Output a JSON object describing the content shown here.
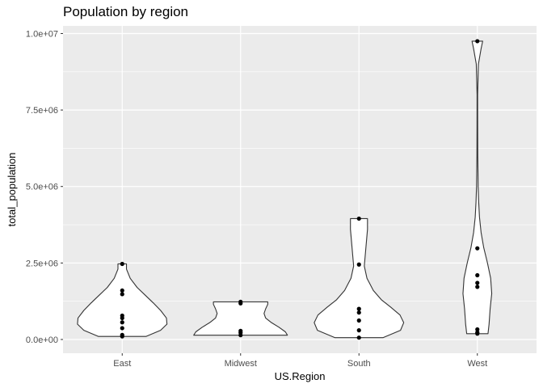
{
  "chart_data": {
    "type": "violin",
    "title": "Population by region",
    "xlabel": "US.Region",
    "ylabel": "total_population",
    "categories": [
      "East",
      "Midwest",
      "South",
      "West"
    ],
    "yticks": [
      {
        "value": 0,
        "label": "0.0e+00"
      },
      {
        "value": 2500000,
        "label": "2.5e+06"
      },
      {
        "value": 5000000,
        "label": "5.0e+06"
      },
      {
        "value": 7500000,
        "label": "7.5e+06"
      },
      {
        "value": 10000000,
        "label": "1.0e+07"
      }
    ],
    "ylim": [
      -450000,
      10250000
    ],
    "grid": true,
    "series": [
      {
        "category": "East",
        "points": [
          2470000,
          1600000,
          1480000,
          780000,
          700000,
          560000,
          370000,
          150000,
          100000
        ],
        "density": [
          {
            "y": 100000,
            "w": 0.45
          },
          {
            "y": 300000,
            "w": 0.72
          },
          {
            "y": 500000,
            "w": 0.84
          },
          {
            "y": 700000,
            "w": 0.83
          },
          {
            "y": 950000,
            "w": 0.72
          },
          {
            "y": 1200000,
            "w": 0.58
          },
          {
            "y": 1450000,
            "w": 0.43
          },
          {
            "y": 1700000,
            "w": 0.28
          },
          {
            "y": 2000000,
            "w": 0.15
          },
          {
            "y": 2300000,
            "w": 0.08
          },
          {
            "y": 2470000,
            "w": 0.08
          }
        ]
      },
      {
        "category": "Midwest",
        "points": [
          1230000,
          1180000,
          280000,
          220000,
          140000
        ],
        "density": [
          {
            "y": 140000,
            "w": 0.88
          },
          {
            "y": 250000,
            "w": 0.84
          },
          {
            "y": 400000,
            "w": 0.72
          },
          {
            "y": 550000,
            "w": 0.58
          },
          {
            "y": 700000,
            "w": 0.47
          },
          {
            "y": 850000,
            "w": 0.44
          },
          {
            "y": 1000000,
            "w": 0.47
          },
          {
            "y": 1150000,
            "w": 0.51
          },
          {
            "y": 1230000,
            "w": 0.51
          }
        ]
      },
      {
        "category": "South",
        "points": [
          3950000,
          2450000,
          1000000,
          880000,
          620000,
          300000,
          60000
        ],
        "density": [
          {
            "y": 60000,
            "w": 0.45
          },
          {
            "y": 300000,
            "w": 0.78
          },
          {
            "y": 550000,
            "w": 0.84
          },
          {
            "y": 800000,
            "w": 0.77
          },
          {
            "y": 1050000,
            "w": 0.6
          },
          {
            "y": 1300000,
            "w": 0.42
          },
          {
            "y": 1600000,
            "w": 0.27
          },
          {
            "y": 2000000,
            "w": 0.15
          },
          {
            "y": 2400000,
            "w": 0.1
          },
          {
            "y": 2800000,
            "w": 0.12
          },
          {
            "y": 3200000,
            "w": 0.14
          },
          {
            "y": 3600000,
            "w": 0.16
          },
          {
            "y": 3800000,
            "w": 0.16
          },
          {
            "y": 3950000,
            "w": 0.16
          }
        ]
      },
      {
        "category": "West",
        "points": [
          9750000,
          2980000,
          2100000,
          1850000,
          1720000,
          330000,
          230000,
          190000
        ],
        "density": [
          {
            "y": 190000,
            "w": 0.2
          },
          {
            "y": 500000,
            "w": 0.22
          },
          {
            "y": 1000000,
            "w": 0.24
          },
          {
            "y": 1500000,
            "w": 0.27
          },
          {
            "y": 2000000,
            "w": 0.25
          },
          {
            "y": 2500000,
            "w": 0.19
          },
          {
            "y": 3000000,
            "w": 0.12
          },
          {
            "y": 3500000,
            "w": 0.07
          },
          {
            "y": 4000000,
            "w": 0.04
          },
          {
            "y": 4500000,
            "w": 0.025
          },
          {
            "y": 5000000,
            "w": 0.015
          },
          {
            "y": 6000000,
            "w": 0.008
          },
          {
            "y": 7000000,
            "w": 0.006
          },
          {
            "y": 8000000,
            "w": 0.005
          },
          {
            "y": 9000000,
            "w": 0.02
          },
          {
            "y": 9500000,
            "w": 0.07
          },
          {
            "y": 9750000,
            "w": 0.1
          }
        ]
      }
    ]
  }
}
